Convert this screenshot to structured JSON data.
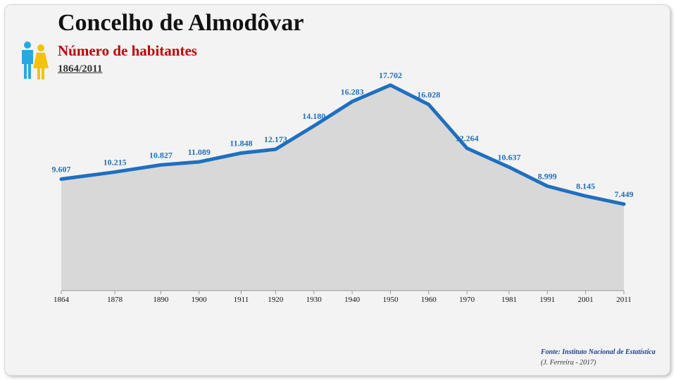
{
  "header": {
    "title": "Concelho de Almodôvar",
    "subtitle": "Número de habitantes",
    "period": "1864/2011"
  },
  "icons": {
    "people": "man-woman-icon"
  },
  "colors": {
    "line": "#1f6fbf",
    "area": "#d8d8d8",
    "subtitle": "#c00000",
    "data_labels": "#1f6fbf"
  },
  "footer": {
    "source": "Fonte: Instituto Nacional de Estatística",
    "author": "(J. Ferreira - 2017)"
  },
  "chart_data": {
    "type": "area",
    "title": "Número de habitantes",
    "xlabel": "",
    "ylabel": "",
    "grid": false,
    "legend": "none",
    "ylim": [
      0,
      20000
    ],
    "categories": [
      "1864",
      "1878",
      "1890",
      "1900",
      "1911",
      "1920",
      "1930",
      "1940",
      "1950",
      "1960",
      "1970",
      "1981",
      "1991",
      "2001",
      "2011"
    ],
    "values": [
      9607,
      10215,
      10827,
      11089,
      11848,
      12173,
      14180,
      16283,
      17702,
      16028,
      12264,
      10637,
      8999,
      8145,
      7449
    ],
    "value_labels": [
      "9.607",
      "10.215",
      "10.827",
      "11.089",
      "11.848",
      "12.173",
      "14.180",
      "16.283",
      "17.702",
      "16.028",
      "12.264",
      "10.637",
      "8.999",
      "8.145",
      "7.449"
    ]
  }
}
